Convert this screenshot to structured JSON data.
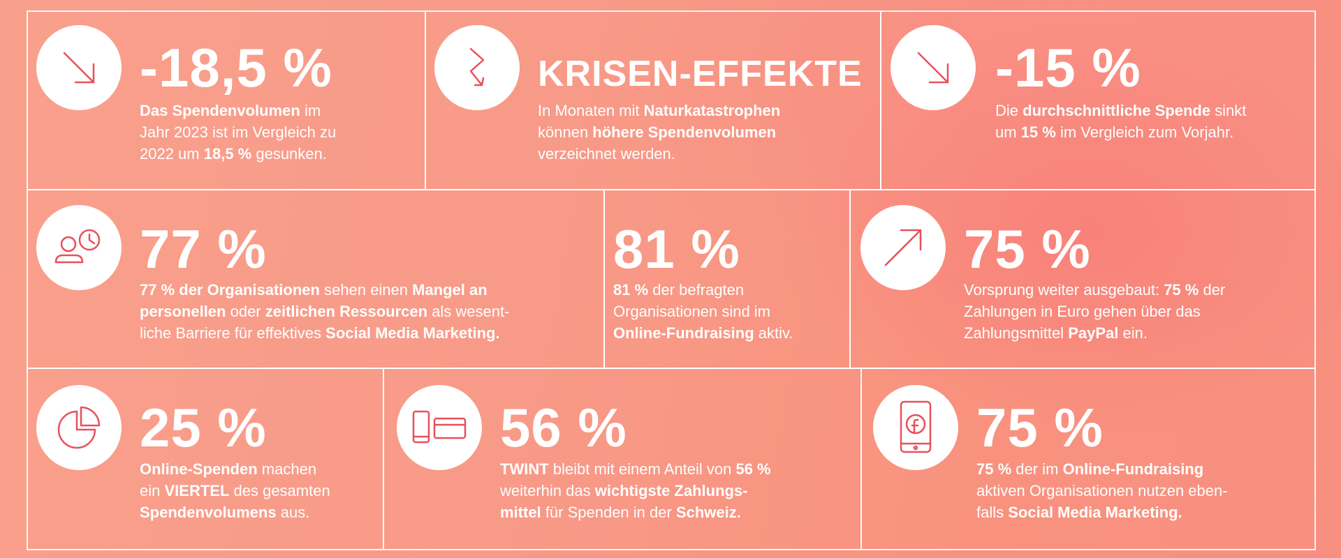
{
  "colors": {
    "icon_stroke": "#e8505b",
    "background_accent": "#f88f80",
    "text": "#ffffff"
  },
  "tiles": [
    {
      "icon": "arrow-down-right-icon",
      "headline": "-18,5 %",
      "lines": [
        [
          {
            "t": "Das Spendenvolumen",
            "b": true
          },
          {
            "t": " im",
            "b": false
          }
        ],
        [
          {
            "t": "Jahr 2023 ist im Vergleich zu",
            "b": false
          }
        ],
        [
          {
            "t": "2022 um ",
            "b": false
          },
          {
            "t": "18,5 %",
            "b": true
          },
          {
            "t": " gesunken.",
            "b": false
          }
        ]
      ]
    },
    {
      "icon": "zigzag-arrow-down-icon",
      "headline": "KRISEN-EFFEKTE",
      "lines": [
        [
          {
            "t": "In Monaten mit ",
            "b": false
          },
          {
            "t": "Naturkatastrophen",
            "b": true
          }
        ],
        [
          {
            "t": "können ",
            "b": false
          },
          {
            "t": "höhere Spendenvolumen",
            "b": true
          }
        ],
        [
          {
            "t": "verzeichnet werden.",
            "b": false
          }
        ]
      ]
    },
    {
      "icon": "arrow-down-right-icon",
      "headline": "-15 %",
      "lines": [
        [
          {
            "t": "Die ",
            "b": false
          },
          {
            "t": "durchschnittliche Spende",
            "b": true
          },
          {
            "t": " sinkt",
            "b": false
          }
        ],
        [
          {
            "t": "um ",
            "b": false
          },
          {
            "t": "15 %",
            "b": true
          },
          {
            "t": " im Vergleich zum Vorjahr.",
            "b": false
          }
        ]
      ]
    },
    {
      "icon": "person-clock-icon",
      "headline": "77 %",
      "lines": [
        [
          {
            "t": "77 % der Organisationen",
            "b": true
          },
          {
            "t": " sehen einen ",
            "b": false
          },
          {
            "t": "Mangel an",
            "b": true
          }
        ],
        [
          {
            "t": "personellen",
            "b": true
          },
          {
            "t": " oder ",
            "b": false
          },
          {
            "t": "zeitlichen Ressourcen",
            "b": true
          },
          {
            "t": " als wesent-",
            "b": false
          }
        ],
        [
          {
            "t": "liche Barriere für effektives ",
            "b": false
          },
          {
            "t": "Social Media Marketing.",
            "b": true
          }
        ]
      ]
    },
    {
      "icon": "",
      "headline": "81 %",
      "lines": [
        [
          {
            "t": "81 %",
            "b": true
          },
          {
            "t": " der befragten",
            "b": false
          }
        ],
        [
          {
            "t": "Organisationen sind im",
            "b": false
          }
        ],
        [
          {
            "t": "Online-Fundraising",
            "b": true
          },
          {
            "t": " aktiv.",
            "b": false
          }
        ]
      ]
    },
    {
      "icon": "arrow-up-right-icon",
      "headline": "75 %",
      "lines": [
        [
          {
            "t": "Vorsprung weiter ausgebaut: ",
            "b": false
          },
          {
            "t": "75 %",
            "b": true
          },
          {
            "t": " der",
            "b": false
          }
        ],
        [
          {
            "t": "Zahlungen in Euro gehen über das",
            "b": false
          }
        ],
        [
          {
            "t": "Zahlungsmittel ",
            "b": false
          },
          {
            "t": "PayPal",
            "b": true
          },
          {
            "t": " ein.",
            "b": false
          }
        ]
      ]
    },
    {
      "icon": "pie-chart-icon",
      "headline": "25 %",
      "lines": [
        [
          {
            "t": "Online-Spenden",
            "b": true
          },
          {
            "t": " machen",
            "b": false
          }
        ],
        [
          {
            "t": "ein ",
            "b": false
          },
          {
            "t": "VIERTEL",
            "b": true
          },
          {
            "t": " des gesamten",
            "b": false
          }
        ],
        [
          {
            "t": "Spendenvolumens",
            "b": true
          },
          {
            "t": " aus.",
            "b": false
          }
        ]
      ]
    },
    {
      "icon": "phone-card-icon",
      "headline": "56 %",
      "lines": [
        [
          {
            "t": "TWINT",
            "b": true
          },
          {
            "t": " bleibt mit einem Anteil von ",
            "b": false
          },
          {
            "t": "56 %",
            "b": true
          }
        ],
        [
          {
            "t": "weiterhin das ",
            "b": false
          },
          {
            "t": "wichtigste Zahlungs-",
            "b": true
          }
        ],
        [
          {
            "t": "mittel",
            "b": true
          },
          {
            "t": " für Spenden in der ",
            "b": false
          },
          {
            "t": "Schweiz.",
            "b": true
          }
        ]
      ]
    },
    {
      "icon": "phone-facebook-icon",
      "headline": "75 %",
      "lines": [
        [
          {
            "t": "75 %",
            "b": true
          },
          {
            "t": " der im ",
            "b": false
          },
          {
            "t": "Online-Fundraising",
            "b": true
          }
        ],
        [
          {
            "t": "aktiven Organisationen nutzen eben-",
            "b": false
          }
        ],
        [
          {
            "t": "falls ",
            "b": false
          },
          {
            "t": "Social Media Marketing.",
            "b": true
          }
        ]
      ]
    }
  ]
}
